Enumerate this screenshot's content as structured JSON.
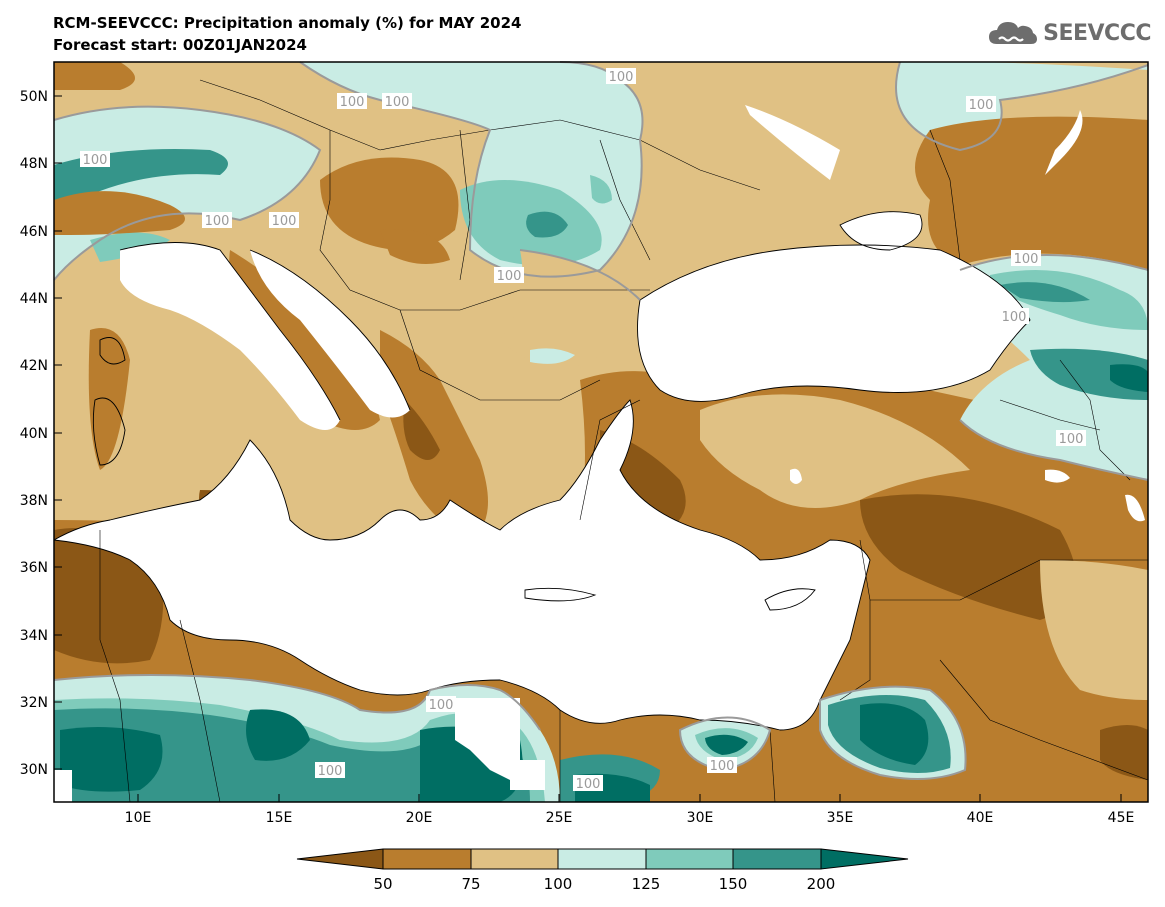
{
  "header": {
    "title": "RCM-SEEVCCC: Precipitation anomaly (%) for MAY 2024",
    "subtitle": "Forecast start: 00Z01JAN2024"
  },
  "logo": {
    "text": "SEEVCCC",
    "icon": "cloud-icon"
  },
  "map": {
    "lon_range": [
      7,
      46
    ],
    "lat_range": [
      29,
      51
    ],
    "lat_ticks": [
      "50N",
      "48N",
      "46N",
      "44N",
      "42N",
      "40N",
      "38N",
      "36N",
      "34N",
      "32N",
      "30N"
    ],
    "lon_ticks": [
      "10E",
      "15E",
      "20E",
      "25E",
      "30E",
      "35E",
      "40E",
      "45E"
    ],
    "contour_labels": [
      "100",
      "100",
      "100",
      "100",
      "100",
      "100",
      "100",
      "100",
      "100",
      "100",
      "100",
      "100",
      "100",
      "100",
      "100"
    ]
  },
  "colorbar": {
    "levels": [
      "50",
      "75",
      "100",
      "125",
      "150",
      "200"
    ],
    "colors": [
      "#8b5716",
      "#b97d2e",
      "#e0c184",
      "#c9ece4",
      "#7fcbbb",
      "#35958a",
      "#006e63"
    ]
  }
}
